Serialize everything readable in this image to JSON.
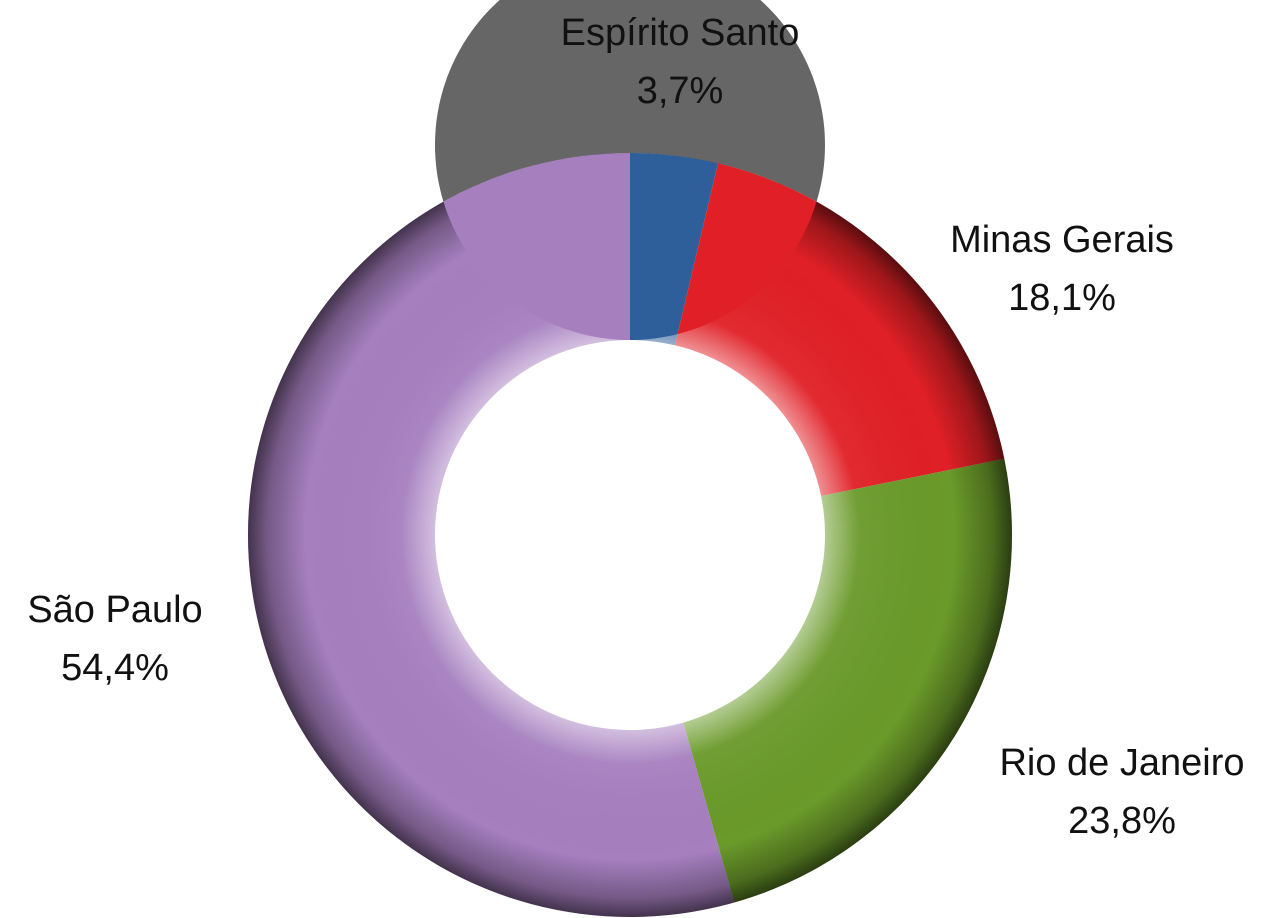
{
  "chart_data": {
    "type": "donut",
    "categories": [
      "Espírito Santo",
      "Minas Gerais",
      "Rio de Janeiro",
      "São Paulo"
    ],
    "values": [
      3.7,
      18.1,
      23.8,
      54.4
    ],
    "value_labels": [
      "3,7%",
      "18,1%",
      "23,8%",
      "54,4%"
    ],
    "colors": [
      "#2e5f9a",
      "#e02026",
      "#6a9a2a",
      "#a67fbf"
    ]
  }
}
